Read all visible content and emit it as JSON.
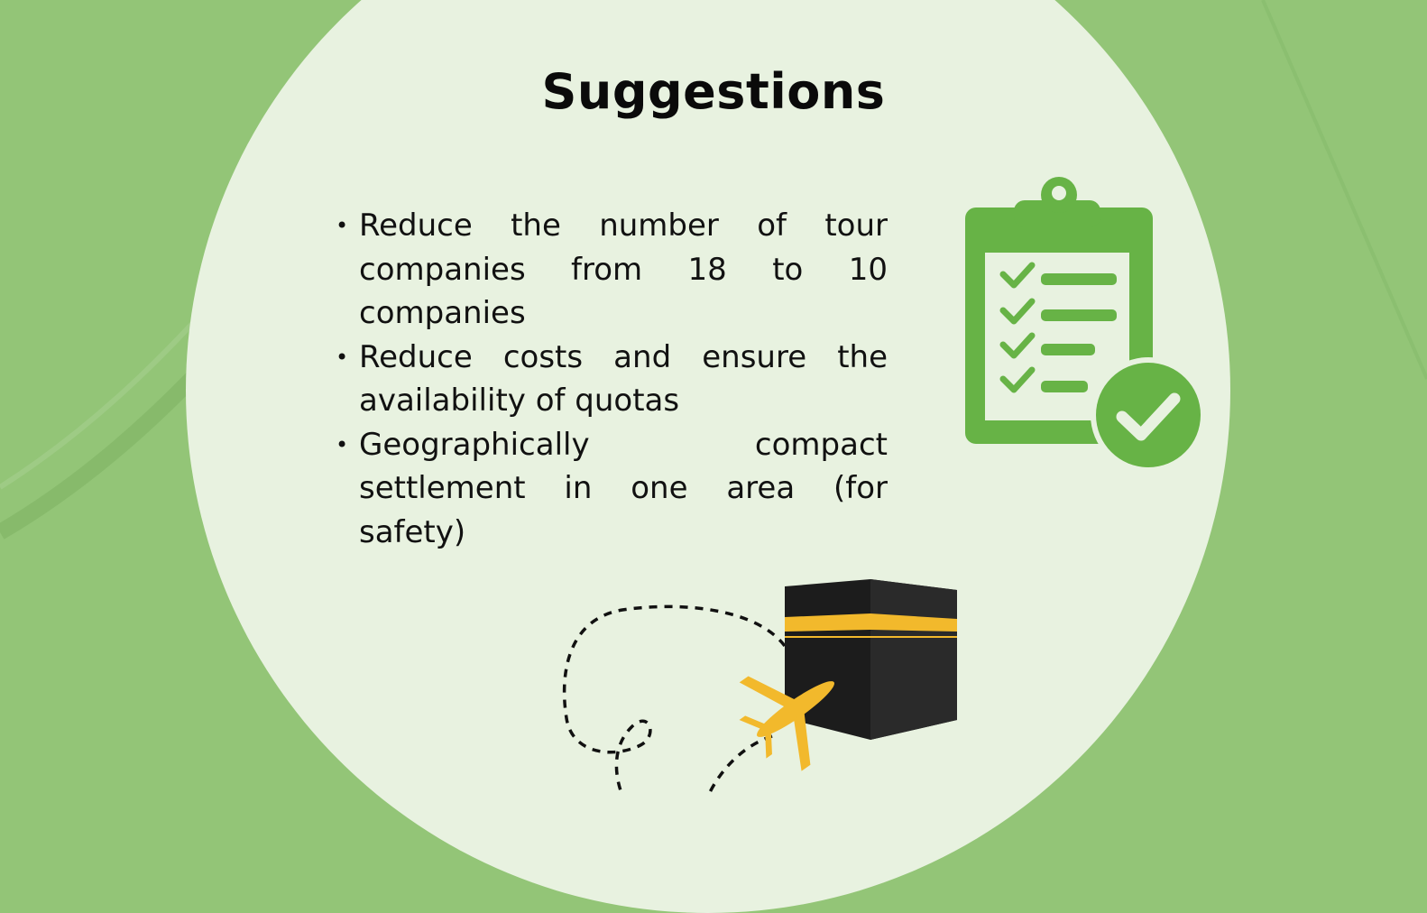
{
  "slide": {
    "title": "Suggestions",
    "bullets": [
      "Reduce the number of tour companies from 18 to 10 companies",
      "Reduce costs and ensure the availability of quotas",
      "Geographically compact settlement in one area (for safety)"
    ]
  },
  "icons": {
    "checklist": "clipboard-checklist-icon",
    "check_badge": "check-circle-icon",
    "kaaba": "kaaba-icon",
    "airplane": "airplane-icon"
  },
  "colors": {
    "background": "#93c577",
    "circle": "#e8f2e0",
    "icon_green": "#67b346",
    "gold": "#f2b92c",
    "kaaba_black": "#1c1c1c"
  }
}
